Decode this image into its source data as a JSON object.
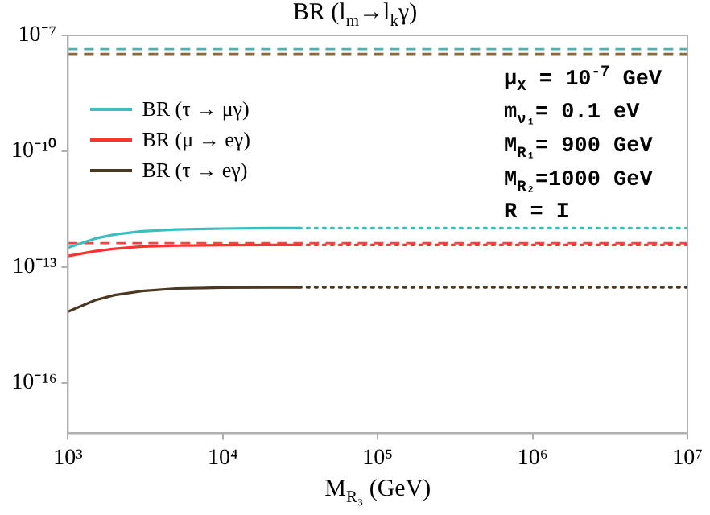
{
  "chart_data": {
    "type": "line",
    "title": "BR (l$_{m}$→l$_{k}$γ)",
    "xlabel": "M$_{R₃}$ (GeV)",
    "log": "xy",
    "grid": false,
    "legend": "top left",
    "marker": "none",
    "xlim": [
      1000,
      10000000
    ],
    "xticks": [
      {
        "value": 1000,
        "label": "10³"
      },
      {
        "value": 10000,
        "label": "10⁴"
      },
      {
        "value": 100000,
        "label": "10⁵"
      },
      {
        "value": 1000000,
        "label": "10⁶"
      },
      {
        "value": 10000000,
        "label": "10⁷"
      }
    ],
    "ylim": [
      5e-18,
      1e-07
    ],
    "yticks": [
      {
        "value": 1e-07,
        "label": "10⁻⁷"
      },
      {
        "value": 1e-10,
        "label": "10⁻¹⁰"
      },
      {
        "value": 1e-13,
        "label": "10⁻¹³"
      },
      {
        "value": 1e-16,
        "label": "10⁻¹⁶"
      }
    ],
    "series": [
      {
        "name": "BR (τ → μγ)",
        "color": "#3dbdbd",
        "line_style": "solid",
        "x": [
          1000,
          1500,
          2000,
          3000,
          5000,
          10000,
          20000,
          31000
        ],
        "values": [
          3.2e-13,
          5.5e-13,
          7e-13,
          8.5e-13,
          9.5e-13,
          1e-12,
          1.03e-12,
          1.03e-12
        ]
      },
      {
        "name": "BR (μ → eγ)",
        "color": "#ff3030",
        "line_style": "solid",
        "x": [
          1000,
          1500,
          2000,
          3000,
          5000,
          10000,
          20000,
          31000
        ],
        "values": [
          1.95e-13,
          2.6e-13,
          3e-13,
          3.4e-13,
          3.6e-13,
          3.7e-13,
          3.75e-13,
          3.75e-13
        ]
      },
      {
        "name": "BR (τ → eγ)",
        "color": "#4a3820",
        "line_style": "solid",
        "x": [
          1000,
          1500,
          2000,
          3000,
          5000,
          10000,
          20000,
          31000
        ],
        "values": [
          7e-15,
          1.4e-14,
          1.9e-14,
          2.4e-14,
          2.8e-14,
          2.95e-14,
          3e-14,
          3e-14
        ]
      },
      {
        "color": "#3dbdbd",
        "line_style": "dotted",
        "x": [
          31000,
          10000000
        ],
        "values": [
          1.03e-12,
          1.03e-12
        ]
      },
      {
        "color": "#ff3030",
        "line_style": "dotted",
        "x": [
          31000,
          10000000
        ],
        "values": [
          3.75e-13,
          3.75e-13
        ]
      },
      {
        "color": "#4a3820",
        "line_style": "dotted",
        "x": [
          31000,
          10000000
        ],
        "values": [
          3e-14,
          3e-14
        ]
      }
    ],
    "ref_lines": [
      {
        "axis": "y",
        "value": 4.4e-08,
        "color": "#4fb3ad",
        "line_style": "dashed"
      },
      {
        "axis": "y",
        "value": 3.3e-08,
        "color": "#8a6a3a",
        "line_style": "dashed"
      },
      {
        "axis": "y",
        "value": 4.2e-13,
        "color": "#ff4040",
        "line_style": "dashed"
      }
    ],
    "annotations": [
      "μ$_{X}$ = 10$^{-7}$ GeV",
      "m$_{ν₁}$= 0.1 eV",
      "M$_{R₁}$= 900 GeV",
      "M$_{R₂}$=1000 GeV",
      "R = I"
    ]
  }
}
